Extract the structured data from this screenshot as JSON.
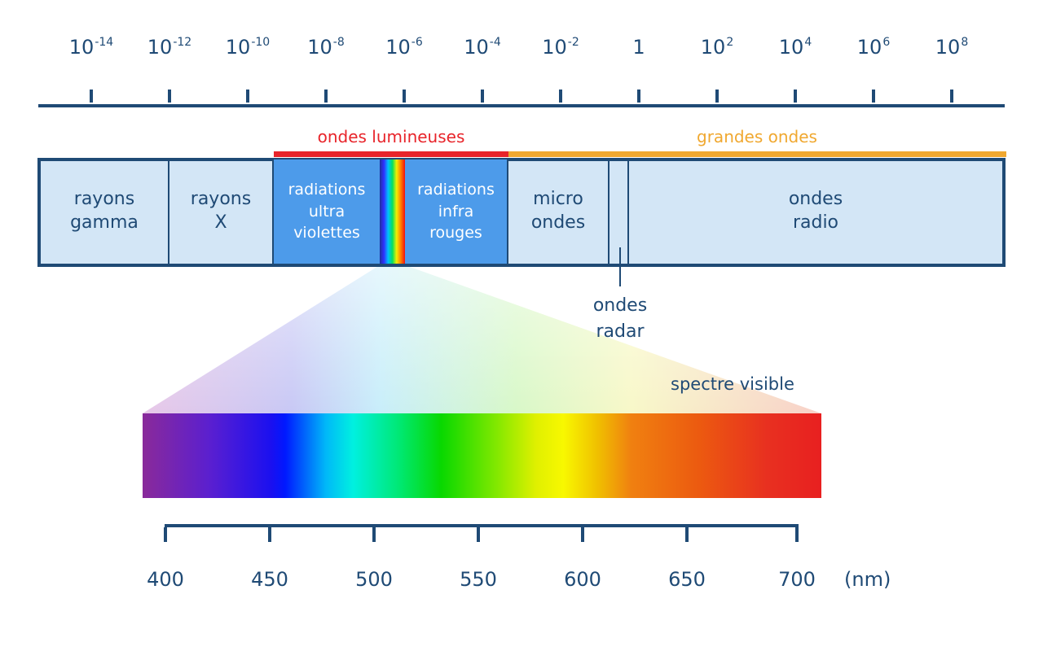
{
  "wavelength_scale": {
    "labels": [
      {
        "base": "10",
        "exp": "-14"
      },
      {
        "base": "10",
        "exp": "-12"
      },
      {
        "base": "10",
        "exp": "-10"
      },
      {
        "base": "10",
        "exp": "-8"
      },
      {
        "base": "10",
        "exp": "-6"
      },
      {
        "base": "10",
        "exp": "-4"
      },
      {
        "base": "10",
        "exp": "-2"
      },
      {
        "base": "1",
        "exp": ""
      },
      {
        "base": "10",
        "exp": "2"
      },
      {
        "base": "10",
        "exp": "4"
      },
      {
        "base": "10",
        "exp": "6"
      },
      {
        "base": "10",
        "exp": "8"
      }
    ]
  },
  "groups": {
    "light_waves": {
      "label": "ondes lumineuses",
      "color": "#e8242a"
    },
    "long_waves": {
      "label": "grandes ondes",
      "color": "#f0a830"
    }
  },
  "bands": [
    {
      "id": "gamma",
      "label": "rayons\ngamma"
    },
    {
      "id": "xray",
      "label": "rayons\nX"
    },
    {
      "id": "uv",
      "label": "radiations\nultra\nviolettes"
    },
    {
      "id": "ir",
      "label": "radiations\ninfra\nrouges"
    },
    {
      "id": "micro",
      "label": "micro\nondes"
    },
    {
      "id": "radio",
      "label": "ondes\nradio"
    }
  ],
  "radar": {
    "label": "ondes\nradar"
  },
  "visible": {
    "label": "spectre visible",
    "ticks": [
      "400",
      "450",
      "500",
      "550",
      "600",
      "650",
      "700"
    ],
    "unit": "(nm)"
  },
  "colors": {
    "primary": "#1f4a75",
    "band_fill": "#d3e6f6",
    "light_band_fill": "#4d9bea"
  }
}
